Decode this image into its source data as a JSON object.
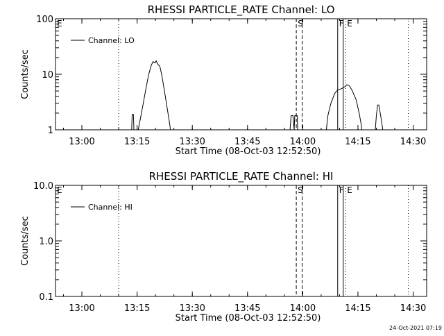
{
  "footer": {
    "timestamp": "24-Oct-2021 07:19"
  },
  "chart_data": [
    {
      "type": "line",
      "title": "RHESSI PARTICLE_RATE Channel: LO",
      "xlabel": "Start Time (08-Oct-03 12:52:50)",
      "ylabel": "Counts/sec",
      "y_scale": "log",
      "ylim": [
        1,
        100
      ],
      "y_ticks": [
        "1",
        "10",
        "100"
      ],
      "xlim": [
        "12:52:50",
        "14:33:40"
      ],
      "x_ticks": [
        "13:00",
        "13:15",
        "13:30",
        "13:45",
        "14:00",
        "14:15",
        "14:30"
      ],
      "grid": false,
      "legend": {
        "position": "top-left",
        "entries": [
          "Channel: LO"
        ]
      },
      "markers": [
        {
          "label": "E",
          "time": "12:52:50",
          "style": "dotted"
        },
        {
          "label": "",
          "time": "13:10:00",
          "style": "dotted"
        },
        {
          "label": "S",
          "time": "13:58:15",
          "style": "dashed"
        },
        {
          "label": "",
          "time": "13:59:50",
          "style": "dashed"
        },
        {
          "label": "F",
          "time": "14:09:30",
          "style": "solid"
        },
        {
          "label": "",
          "time": "14:11:00",
          "style": "solid"
        },
        {
          "label": "E",
          "time": "14:11:40",
          "style": "dotted"
        },
        {
          "label": "",
          "time": "14:28:40",
          "style": "dotted"
        }
      ],
      "series": [
        {
          "name": "Channel: LO",
          "segments": [
            [
              [
                "13:13:30",
                0.9
              ],
              [
                "13:13:40",
                1.9
              ],
              [
                "13:14:00",
                1.9
              ],
              [
                "13:14:10",
                0.9
              ]
            ],
            [
              [
                "13:15:10",
                0.9
              ],
              [
                "13:15:50",
                1.5
              ],
              [
                "13:16:40",
                3.0
              ],
              [
                "13:17:30",
                6.0
              ],
              [
                "13:18:10",
                10.0
              ],
              [
                "13:18:50",
                14.5
              ],
              [
                "13:19:20",
                17.0
              ],
              [
                "13:19:50",
                16.0
              ],
              [
                "13:20:10",
                17.5
              ],
              [
                "13:20:40",
                15.0
              ],
              [
                "13:21:10",
                14.0
              ],
              [
                "13:21:40",
                10.0
              ],
              [
                "13:22:20",
                5.5
              ],
              [
                "13:23:10",
                2.5
              ],
              [
                "13:23:50",
                1.3
              ],
              [
                "13:24:10",
                0.9
              ]
            ],
            [
              [
                "13:56:30",
                0.9
              ],
              [
                "13:56:50",
                1.8
              ],
              [
                "13:57:20",
                1.8
              ],
              [
                "13:57:40",
                1.0
              ],
              [
                "13:57:50",
                1.8
              ],
              [
                "13:58:30",
                1.8
              ],
              [
                "13:58:40",
                0.9
              ]
            ],
            [
              [
                "14:06:20",
                0.9
              ],
              [
                "14:06:50",
                1.8
              ],
              [
                "14:07:40",
                3.0
              ],
              [
                "14:08:40",
                4.5
              ],
              [
                "14:09:30",
                5.2
              ],
              [
                "14:10:30",
                5.5
              ],
              [
                "14:11:30",
                6.0
              ],
              [
                "14:12:00",
                6.5
              ],
              [
                "14:12:40",
                6.2
              ],
              [
                "14:13:30",
                5.0
              ],
              [
                "14:14:30",
                3.5
              ],
              [
                "14:15:20",
                2.0
              ],
              [
                "14:15:50",
                1.3
              ],
              [
                "14:16:10",
                0.9
              ]
            ],
            [
              [
                "14:19:40",
                0.9
              ],
              [
                "14:20:00",
                1.8
              ],
              [
                "14:20:20",
                2.8
              ],
              [
                "14:20:40",
                2.8
              ],
              [
                "14:21:10",
                1.8
              ],
              [
                "14:21:40",
                1.1
              ],
              [
                "14:21:50",
                0.9
              ]
            ]
          ]
        }
      ]
    },
    {
      "type": "line",
      "title": "RHESSI PARTICLE_RATE Channel: HI",
      "xlabel": "Start Time (08-Oct-03 12:52:50)",
      "ylabel": "Counts/sec",
      "y_scale": "log",
      "ylim": [
        0.1,
        10
      ],
      "y_ticks": [
        "0.1",
        "1.0",
        "10.0"
      ],
      "xlim": [
        "12:52:50",
        "14:33:40"
      ],
      "x_ticks": [
        "13:00",
        "13:15",
        "13:30",
        "13:45",
        "14:00",
        "14:15",
        "14:30"
      ],
      "grid": false,
      "legend": {
        "position": "top-left",
        "entries": [
          "Channel: HI"
        ]
      },
      "markers": [
        {
          "label": "E",
          "time": "12:52:50",
          "style": "dotted"
        },
        {
          "label": "",
          "time": "13:10:00",
          "style": "dotted"
        },
        {
          "label": "S",
          "time": "13:58:15",
          "style": "dashed"
        },
        {
          "label": "",
          "time": "13:59:50",
          "style": "dashed"
        },
        {
          "label": "F",
          "time": "14:09:30",
          "style": "solid"
        },
        {
          "label": "",
          "time": "14:11:00",
          "style": "solid"
        },
        {
          "label": "E",
          "time": "14:11:40",
          "style": "dotted"
        },
        {
          "label": "",
          "time": "14:28:40",
          "style": "dotted"
        }
      ],
      "series": [
        {
          "name": "Channel: HI",
          "segments": []
        }
      ]
    }
  ]
}
